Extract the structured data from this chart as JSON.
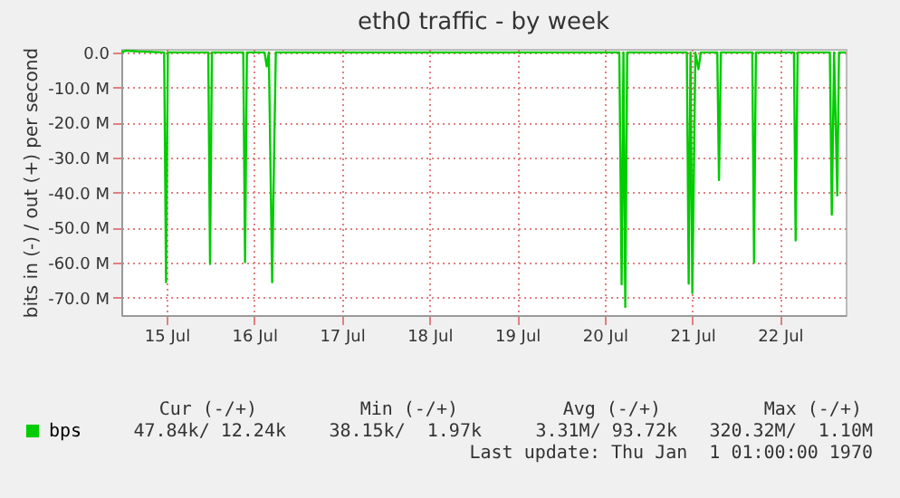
{
  "chart_data": {
    "type": "line",
    "title": "eth0 traffic - by week",
    "ylabel": "bits in (-) / out (+) per second",
    "x": [
      "--07-14T23:36",
      "--07-15T01:00",
      "--07-15T04:00",
      "--07-15T11:20",
      "--07-15T11:51",
      "--07-15T12:20",
      "--07-15T23:25",
      "--07-15T23:54",
      "--07-16T00:25",
      "--07-16T09:00",
      "--07-16T09:29",
      "--07-16T10:00",
      "--07-16T14:50",
      "--07-16T15:26",
      "--07-16T16:00",
      "--07-16T16:55",
      "--07-16T17:25",
      "--07-16T17:55",
      "--07-20T16:00",
      "--07-20T16:38",
      "--07-20T17:08",
      "--07-20T17:38",
      "--07-20T18:10",
      "--07-21T10:30",
      "--07-21T11:00",
      "--07-21T11:30",
      "--07-21T12:00",
      "--07-21T12:50",
      "--07-21T13:40",
      "--07-21T14:20",
      "--07-21T18:50",
      "--07-21T19:18",
      "--07-21T19:50",
      "--07-22T04:25",
      "--07-22T04:54",
      "--07-22T05:25",
      "--07-22T15:50",
      "--07-22T16:18",
      "--07-22T16:50",
      "--07-23T01:40",
      "--07-23T02:12",
      "--07-23T02:50",
      "--07-23T03:42",
      "--07-23T04:10",
      "--07-23T06:00"
    ],
    "series": [
      {
        "name": "bps",
        "color": "#00cc00",
        "values": [
          0,
          0.5,
          0.3,
          0,
          -65.6,
          0,
          0,
          -60.4,
          0,
          0,
          -59.9,
          0,
          0,
          -4,
          0,
          -65.6,
          -31,
          0,
          0,
          -66.2,
          0,
          -72.7,
          0,
          0,
          -66,
          0,
          -68.7,
          0,
          -4.8,
          0,
          0,
          -36.4,
          0,
          0,
          -60,
          0,
          0,
          -53.7,
          0,
          0,
          -46.3,
          0,
          -40.8,
          0,
          0
        ]
      }
    ],
    "xlim": [
      "--07-14T23:36",
      "--07-23T06:00"
    ],
    "xticks": [
      {
        "value": "--07-15T12:00",
        "label": "15 Jul"
      },
      {
        "value": "--07-16T12:00",
        "label": "16 Jul"
      },
      {
        "value": "--07-17T12:00",
        "label": "17 Jul"
      },
      {
        "value": "--07-18T12:00",
        "label": "18 Jul"
      },
      {
        "value": "--07-19T12:00",
        "label": "19 Jul"
      },
      {
        "value": "--07-20T12:00",
        "label": "20 Jul"
      },
      {
        "value": "--07-21T12:00",
        "label": "21 Jul"
      },
      {
        "value": "--07-22T12:00",
        "label": "22 Jul"
      }
    ],
    "ylim": [
      -75,
      1
    ],
    "yticks": [
      {
        "value": 0,
        "label": "0.0"
      },
      {
        "value": -10,
        "label": "-10.0 M"
      },
      {
        "value": -20,
        "label": "-20.0 M"
      },
      {
        "value": -30,
        "label": "-30.0 M"
      },
      {
        "value": -40,
        "label": "-40.0 M"
      },
      {
        "value": -50,
        "label": "-50.0 M"
      },
      {
        "value": -60,
        "label": "-60.0 M"
      },
      {
        "value": -70,
        "label": "-70.0 M"
      }
    ],
    "grid": true,
    "legend": "bottom",
    "line_style": "solid",
    "marker": "none",
    "annotations": [
      "Cur (-/+)",
      "Min (-/+)",
      "Avg (-/+)",
      "Max (-/+)",
      "47.84k/ 12.24k",
      "38.15k/  1.97k",
      "3.31M/ 93.72k",
      "320.32M/  1.10M",
      "Last update: Thu Jan  1 01:00:00 1970"
    ]
  }
}
